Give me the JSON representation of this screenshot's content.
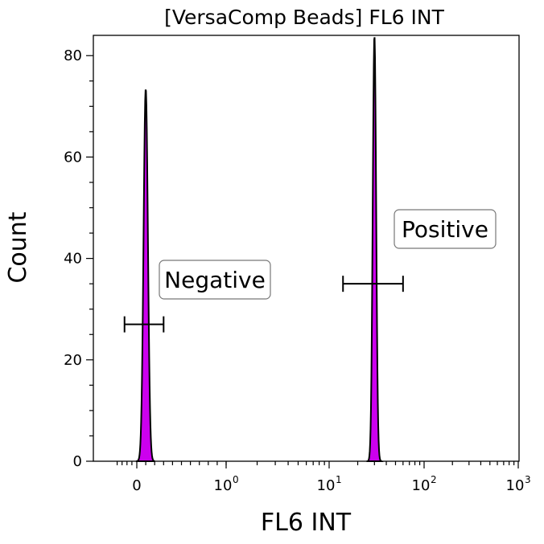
{
  "chart_data": {
    "type": "histogram",
    "title": "[VersaComp Beads] FL6 INT",
    "xlabel": "FL6 INT",
    "ylabel": "Count",
    "x_scale": "logicle",
    "ylim": [
      0,
      84
    ],
    "y_ticks": [
      0,
      20,
      40,
      60,
      80
    ],
    "x_ticks": [
      {
        "label": "0",
        "value": 0
      },
      {
        "label": "10",
        "sup": "0",
        "value": 1
      },
      {
        "label": "10",
        "sup": "1",
        "value": 10
      },
      {
        "label": "10",
        "sup": "2",
        "value": 100
      },
      {
        "label": "10",
        "sup": "3",
        "value": 1000
      }
    ],
    "fill_color": "#cc00ee",
    "line_color": "#000000",
    "series": [
      {
        "name": "Negative population",
        "center": 0.1,
        "peak_count": 73.5
      },
      {
        "name": "Positive population",
        "center": 30,
        "peak_count": 84
      }
    ],
    "gates": [
      {
        "label": "Negative",
        "range": [
          -0.25,
          0.3
        ],
        "y": 27
      },
      {
        "label": "Positive",
        "range": [
          14,
          60
        ],
        "y": 35
      }
    ]
  }
}
